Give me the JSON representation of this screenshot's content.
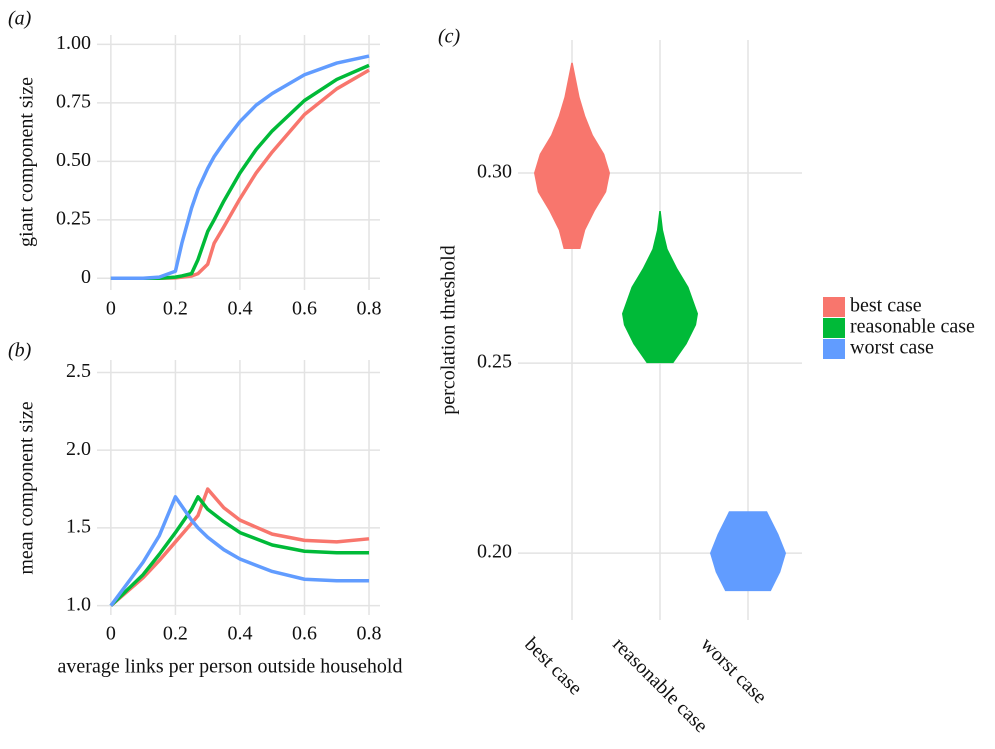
{
  "chart_data": [
    {
      "type": "line",
      "label": "(a)",
      "ylabel": "giant component size",
      "x": [
        0,
        0.1,
        0.15,
        0.2,
        0.22,
        0.25,
        0.27,
        0.3,
        0.32,
        0.35,
        0.4,
        0.45,
        0.5,
        0.6,
        0.7,
        0.8
      ],
      "series": [
        {
          "name": "best case",
          "color": "#F8766D",
          "values": [
            0,
            0,
            0,
            0.002,
            0.005,
            0.01,
            0.02,
            0.06,
            0.15,
            0.22,
            0.34,
            0.45,
            0.54,
            0.7,
            0.81,
            0.89
          ]
        },
        {
          "name": "reasonable case",
          "color": "#00BA38",
          "values": [
            0,
            0,
            0,
            0.005,
            0.01,
            0.02,
            0.08,
            0.2,
            0.25,
            0.33,
            0.45,
            0.55,
            0.63,
            0.76,
            0.85,
            0.91
          ]
        },
        {
          "name": "worst case",
          "color": "#619CFF",
          "values": [
            0,
            0,
            0.005,
            0.03,
            0.15,
            0.3,
            0.38,
            0.47,
            0.52,
            0.58,
            0.67,
            0.74,
            0.79,
            0.87,
            0.92,
            0.95
          ]
        }
      ],
      "xlim": [
        -0.043,
        0.834
      ],
      "xticks": [
        0,
        0.2,
        0.4,
        0.6,
        0.8
      ],
      "ylim": [
        -0.05,
        1.04
      ],
      "yticks": [
        0,
        0.25,
        {
          "value": 0.5,
          "label": "0.50"
        },
        0.75,
        {
          "value": 1,
          "label": "1.00"
        }
      ],
      "grid": true
    },
    {
      "type": "line",
      "label": "(b)",
      "ylabel": "mean component size",
      "xlabel": "average links per person outside household",
      "x": [
        0,
        0.1,
        0.15,
        0.2,
        0.25,
        0.27,
        0.3,
        0.35,
        0.4,
        0.5,
        0.6,
        0.7,
        0.8
      ],
      "series": [
        {
          "name": "best case",
          "color": "#F8766D",
          "values": [
            1,
            1.18,
            1.29,
            1.41,
            1.53,
            1.58,
            1.75,
            1.63,
            1.55,
            1.46,
            1.42,
            1.41,
            1.43
          ]
        },
        {
          "name": "reasonable case",
          "color": "#00BA38",
          "values": [
            1,
            1.2,
            1.33,
            1.47,
            1.62,
            1.7,
            1.62,
            1.54,
            1.47,
            1.39,
            1.35,
            1.34,
            1.34
          ]
        },
        {
          "name": "worst case",
          "color": "#619CFF",
          "values": [
            1,
            1.28,
            1.45,
            1.7,
            1.55,
            1.5,
            1.44,
            1.36,
            1.3,
            1.22,
            1.17,
            1.16,
            1.16
          ]
        }
      ],
      "xlim": [
        -0.043,
        0.834
      ],
      "xticks": [
        0,
        0.2,
        0.4,
        0.6,
        0.8
      ],
      "ylim": [
        0.94,
        2.58
      ],
      "yticks": [
        {
          "value": 1,
          "label": "1.0"
        },
        1.5,
        {
          "value": 2,
          "label": "2.0"
        },
        2.5
      ],
      "grid": true
    },
    {
      "type": "violin",
      "label": "(c)",
      "ylabel": "percolation threshold",
      "categories": [
        "best case",
        "reasonable case",
        "worst case"
      ],
      "series": [
        {
          "name": "best case",
          "color": "#F8766D",
          "values": [
            0.28,
            0.285,
            0.29,
            0.295,
            0.3,
            0.305,
            0.31,
            0.315,
            0.32,
            0.325,
            0.329
          ],
          "density": [
            0.22,
            0.35,
            0.6,
            0.9,
            1,
            0.85,
            0.55,
            0.35,
            0.2,
            0.1,
            0.02
          ]
        },
        {
          "name": "reasonable case",
          "color": "#00BA38",
          "values": [
            0.25,
            0.255,
            0.26,
            0.263,
            0.27,
            0.275,
            0.28,
            0.285,
            0.29
          ],
          "density": [
            0.35,
            0.7,
            0.95,
            1,
            0.75,
            0.45,
            0.2,
            0.08,
            0.02
          ]
        },
        {
          "name": "worst case",
          "color": "#619CFF",
          "values": [
            0.19,
            0.195,
            0.2,
            0.205,
            0.21,
            0.211
          ],
          "density": [
            0.6,
            0.85,
            1,
            0.8,
            0.55,
            0.5
          ]
        }
      ],
      "ylim": [
        0.1824,
        0.335
      ],
      "yticks": [
        {
          "value": 0.2,
          "label": "0.20"
        },
        0.25,
        {
          "value": 0.3,
          "label": "0.30"
        }
      ],
      "grid": true,
      "legend": "right"
    }
  ]
}
